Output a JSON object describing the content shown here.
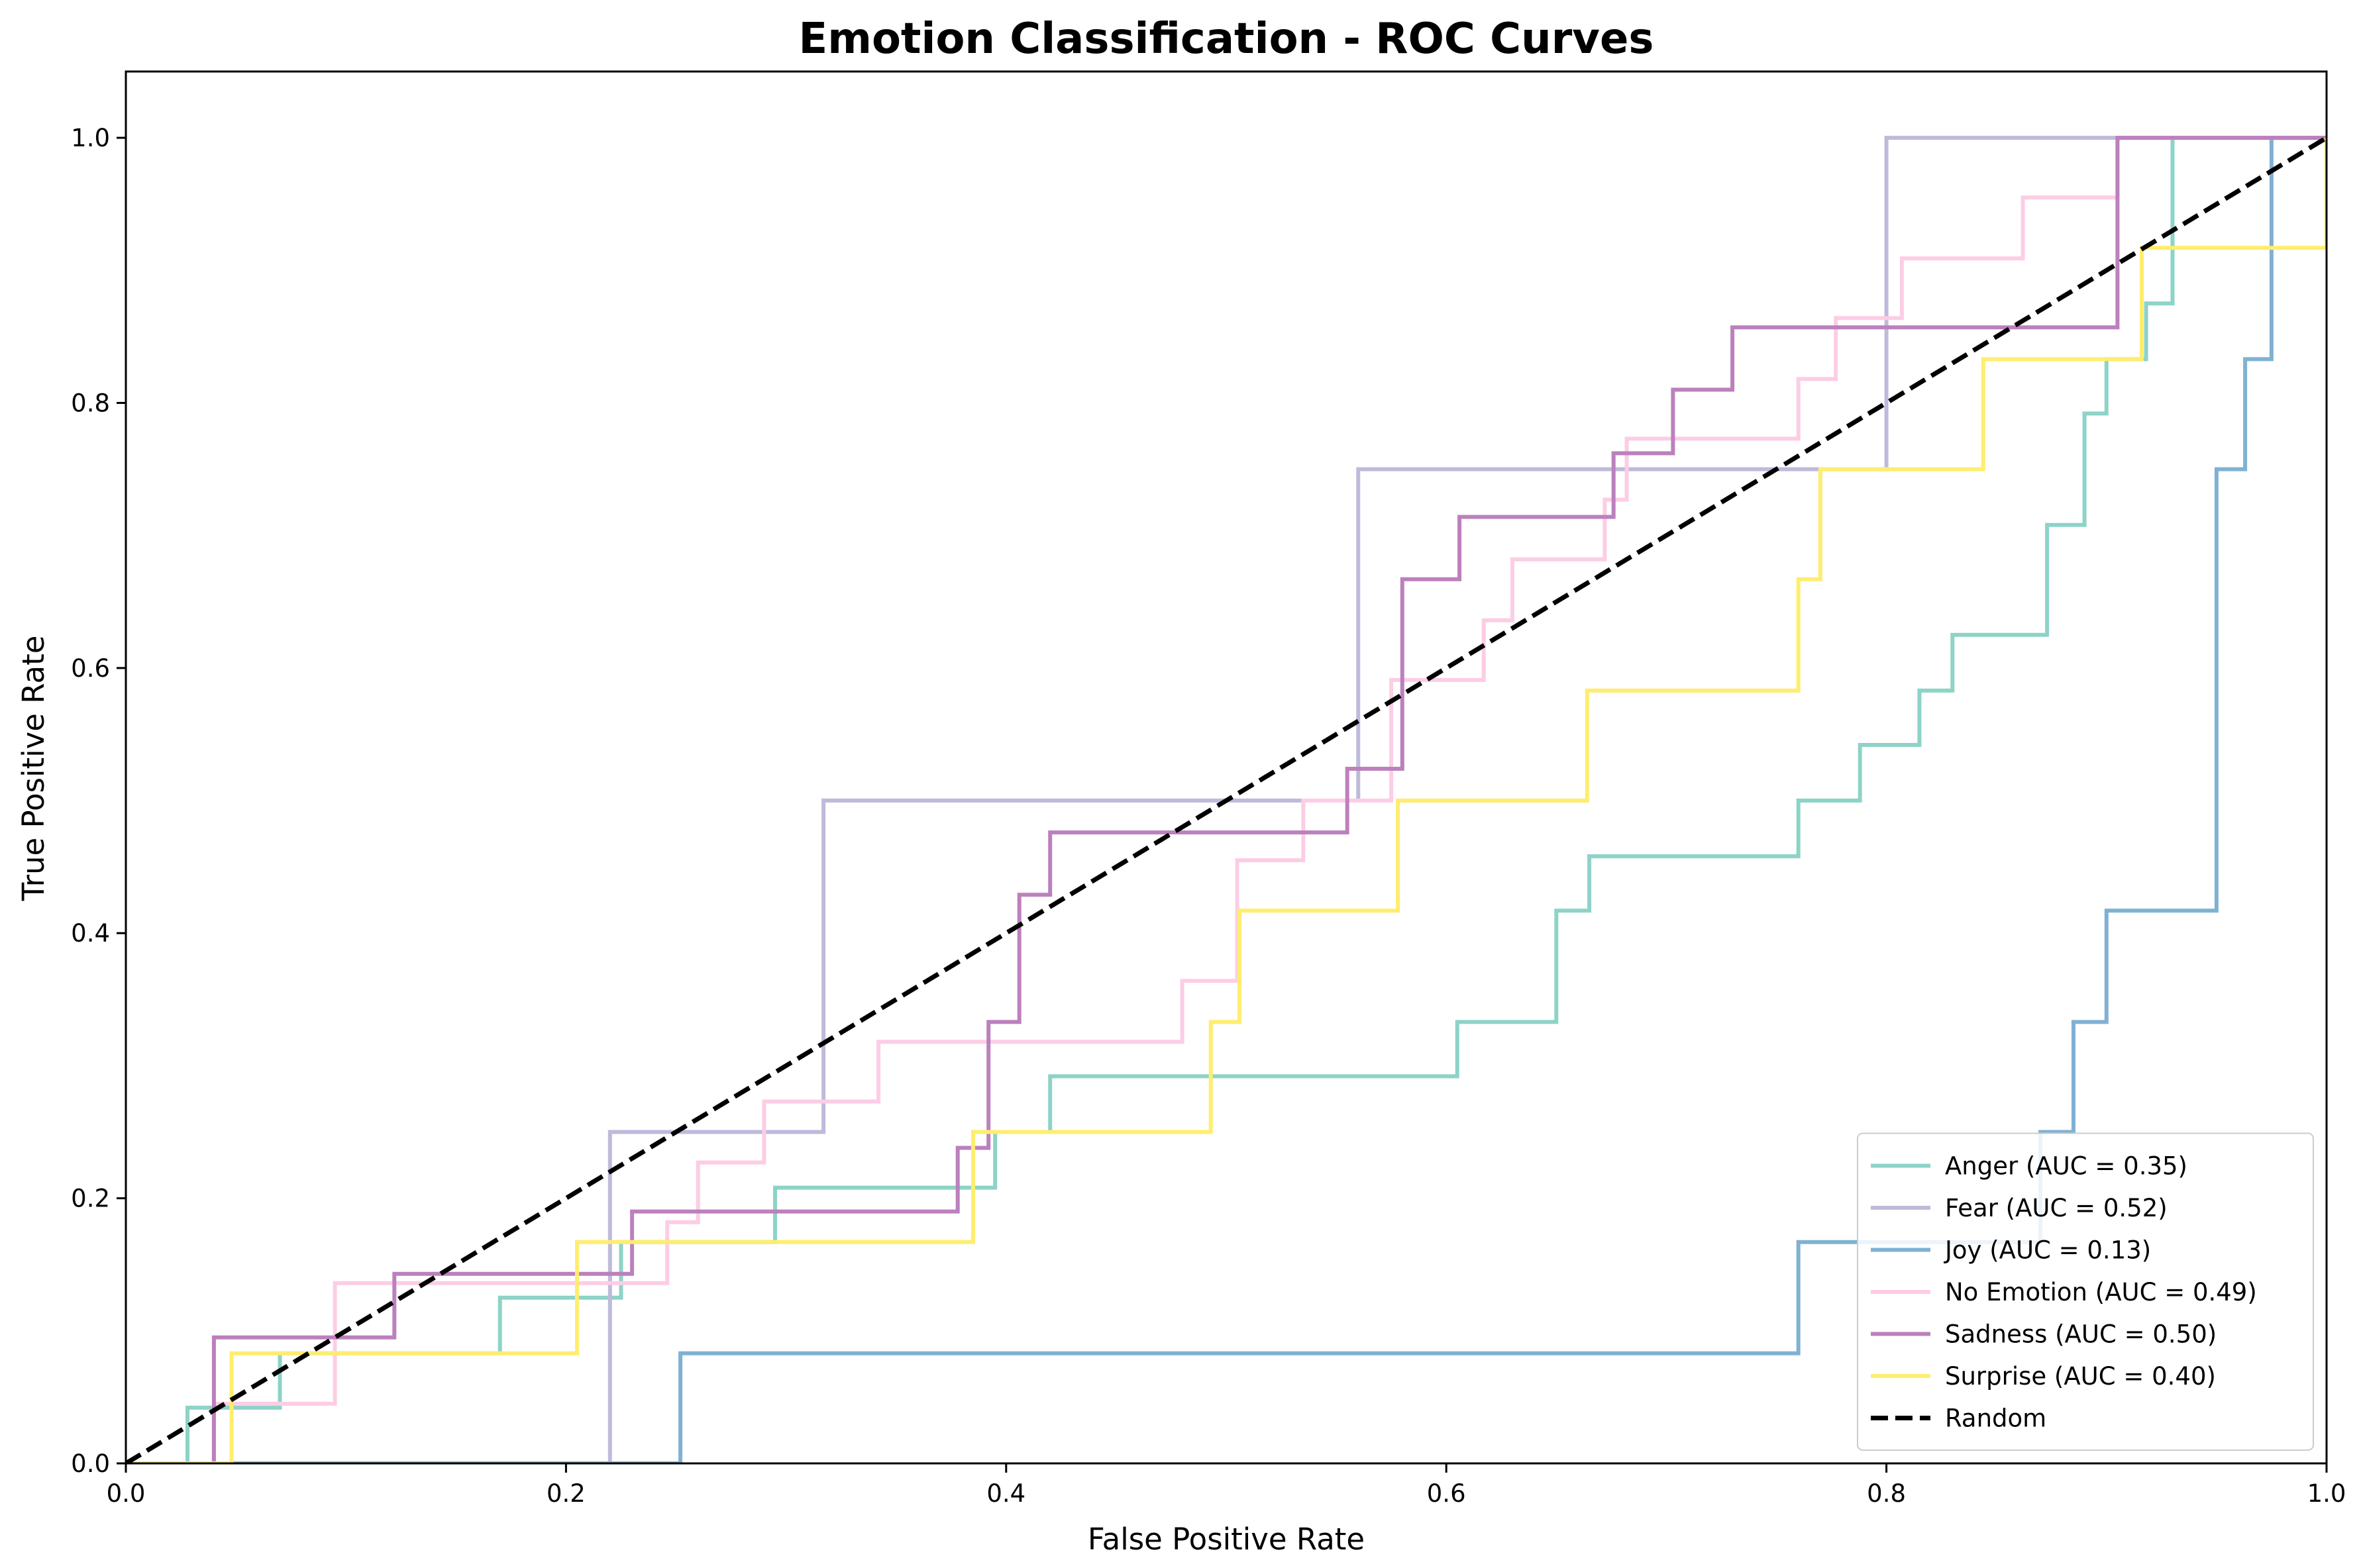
{
  "chart_data": {
    "type": "line",
    "title": "Emotion Classification - ROC Curves",
    "xlabel": "False Positive Rate",
    "ylabel": "True Positive Rate",
    "xlim": [
      0,
      1
    ],
    "ylim": [
      0,
      1.05
    ],
    "x_ticks": [
      "0.0",
      "0.2",
      "0.4",
      "0.6",
      "0.8",
      "1.0"
    ],
    "y_ticks": [
      "0.0",
      "0.2",
      "0.4",
      "0.6",
      "0.8",
      "1.0"
    ],
    "grid": false,
    "legend_position": "lower-right",
    "series": [
      {
        "name": "Anger (AUC = 0.35)",
        "color": "#8dd3c7",
        "points": [
          [
            0,
            0
          ],
          [
            0.028,
            0
          ],
          [
            0.028,
            0.042
          ],
          [
            0.07,
            0.042
          ],
          [
            0.07,
            0.083
          ],
          [
            0.17,
            0.083
          ],
          [
            0.17,
            0.125
          ],
          [
            0.225,
            0.125
          ],
          [
            0.225,
            0.167
          ],
          [
            0.295,
            0.167
          ],
          [
            0.295,
            0.208
          ],
          [
            0.395,
            0.208
          ],
          [
            0.395,
            0.25
          ],
          [
            0.42,
            0.25
          ],
          [
            0.42,
            0.292
          ],
          [
            0.605,
            0.292
          ],
          [
            0.605,
            0.333
          ],
          [
            0.65,
            0.333
          ],
          [
            0.65,
            0.417
          ],
          [
            0.665,
            0.417
          ],
          [
            0.665,
            0.458
          ],
          [
            0.76,
            0.458
          ],
          [
            0.76,
            0.5
          ],
          [
            0.788,
            0.5
          ],
          [
            0.788,
            0.542
          ],
          [
            0.815,
            0.542
          ],
          [
            0.815,
            0.583
          ],
          [
            0.83,
            0.583
          ],
          [
            0.83,
            0.625
          ],
          [
            0.873,
            0.625
          ],
          [
            0.873,
            0.708
          ],
          [
            0.89,
            0.708
          ],
          [
            0.89,
            0.792
          ],
          [
            0.9,
            0.792
          ],
          [
            0.9,
            0.833
          ],
          [
            0.918,
            0.833
          ],
          [
            0.918,
            0.875
          ],
          [
            0.93,
            0.875
          ],
          [
            0.93,
            1.0
          ],
          [
            1.0,
            1.0
          ]
        ]
      },
      {
        "name": "Fear (AUC = 0.52)",
        "color": "#bebada",
        "points": [
          [
            0,
            0
          ],
          [
            0.22,
            0
          ],
          [
            0.22,
            0.25
          ],
          [
            0.317,
            0.25
          ],
          [
            0.317,
            0.5
          ],
          [
            0.56,
            0.5
          ],
          [
            0.56,
            0.75
          ],
          [
            0.8,
            0.75
          ],
          [
            0.8,
            1.0
          ],
          [
            1.0,
            1.0
          ]
        ]
      },
      {
        "name": "Joy (AUC = 0.13)",
        "color": "#80b1d3",
        "points": [
          [
            0,
            0
          ],
          [
            0.252,
            0
          ],
          [
            0.252,
            0.083
          ],
          [
            0.76,
            0.083
          ],
          [
            0.76,
            0.167
          ],
          [
            0.87,
            0.167
          ],
          [
            0.87,
            0.25
          ],
          [
            0.885,
            0.25
          ],
          [
            0.885,
            0.333
          ],
          [
            0.9,
            0.333
          ],
          [
            0.9,
            0.417
          ],
          [
            0.95,
            0.417
          ],
          [
            0.95,
            0.75
          ],
          [
            0.963,
            0.75
          ],
          [
            0.963,
            0.833
          ],
          [
            0.975,
            0.833
          ],
          [
            0.975,
            1.0
          ],
          [
            1.0,
            1.0
          ]
        ]
      },
      {
        "name": "No Emotion (AUC = 0.49)",
        "color": "#fccde5",
        "points": [
          [
            0,
            0
          ],
          [
            0.04,
            0
          ],
          [
            0.04,
            0.045
          ],
          [
            0.095,
            0.045
          ],
          [
            0.095,
            0.136
          ],
          [
            0.246,
            0.136
          ],
          [
            0.246,
            0.182
          ],
          [
            0.26,
            0.182
          ],
          [
            0.26,
            0.227
          ],
          [
            0.29,
            0.227
          ],
          [
            0.29,
            0.273
          ],
          [
            0.342,
            0.273
          ],
          [
            0.342,
            0.318
          ],
          [
            0.48,
            0.318
          ],
          [
            0.48,
            0.364
          ],
          [
            0.505,
            0.364
          ],
          [
            0.505,
            0.455
          ],
          [
            0.535,
            0.455
          ],
          [
            0.535,
            0.5
          ],
          [
            0.575,
            0.5
          ],
          [
            0.575,
            0.591
          ],
          [
            0.617,
            0.591
          ],
          [
            0.617,
            0.636
          ],
          [
            0.63,
            0.636
          ],
          [
            0.63,
            0.682
          ],
          [
            0.672,
            0.682
          ],
          [
            0.672,
            0.727
          ],
          [
            0.682,
            0.727
          ],
          [
            0.682,
            0.773
          ],
          [
            0.76,
            0.773
          ],
          [
            0.76,
            0.818
          ],
          [
            0.777,
            0.818
          ],
          [
            0.777,
            0.864
          ],
          [
            0.807,
            0.864
          ],
          [
            0.807,
            0.909
          ],
          [
            0.862,
            0.909
          ],
          [
            0.862,
            0.955
          ],
          [
            0.905,
            0.955
          ],
          [
            0.905,
            1.0
          ],
          [
            1.0,
            1.0
          ]
        ]
      },
      {
        "name": "Sadness (AUC = 0.50)",
        "color": "#bc80bd",
        "points": [
          [
            0,
            0
          ],
          [
            0.04,
            0
          ],
          [
            0.04,
            0.095
          ],
          [
            0.122,
            0.095
          ],
          [
            0.122,
            0.143
          ],
          [
            0.23,
            0.143
          ],
          [
            0.23,
            0.19
          ],
          [
            0.378,
            0.19
          ],
          [
            0.378,
            0.238
          ],
          [
            0.392,
            0.238
          ],
          [
            0.392,
            0.333
          ],
          [
            0.406,
            0.333
          ],
          [
            0.406,
            0.429
          ],
          [
            0.42,
            0.429
          ],
          [
            0.42,
            0.476
          ],
          [
            0.555,
            0.476
          ],
          [
            0.555,
            0.524
          ],
          [
            0.58,
            0.524
          ],
          [
            0.58,
            0.667
          ],
          [
            0.606,
            0.667
          ],
          [
            0.606,
            0.714
          ],
          [
            0.676,
            0.714
          ],
          [
            0.676,
            0.762
          ],
          [
            0.703,
            0.762
          ],
          [
            0.703,
            0.81
          ],
          [
            0.73,
            0.81
          ],
          [
            0.73,
            0.857
          ],
          [
            0.905,
            0.857
          ],
          [
            0.905,
            1.0
          ],
          [
            1.0,
            1.0
          ]
        ]
      },
      {
        "name": "Surprise (AUC = 0.40)",
        "color": "#ffed6f",
        "points": [
          [
            0,
            0
          ],
          [
            0.048,
            0
          ],
          [
            0.048,
            0.083
          ],
          [
            0.205,
            0.083
          ],
          [
            0.205,
            0.167
          ],
          [
            0.385,
            0.167
          ],
          [
            0.385,
            0.25
          ],
          [
            0.493,
            0.25
          ],
          [
            0.493,
            0.333
          ],
          [
            0.506,
            0.333
          ],
          [
            0.506,
            0.417
          ],
          [
            0.578,
            0.417
          ],
          [
            0.578,
            0.5
          ],
          [
            0.664,
            0.5
          ],
          [
            0.664,
            0.583
          ],
          [
            0.76,
            0.583
          ],
          [
            0.76,
            0.667
          ],
          [
            0.77,
            0.667
          ],
          [
            0.77,
            0.75
          ],
          [
            0.844,
            0.75
          ],
          [
            0.844,
            0.833
          ],
          [
            0.916,
            0.833
          ],
          [
            0.916,
            0.917
          ],
          [
            1.0,
            0.917
          ],
          [
            1.0,
            1.0
          ]
        ]
      },
      {
        "name": "Random",
        "color": "#000000",
        "dashed": true,
        "points": [
          [
            0,
            0
          ],
          [
            1,
            1
          ]
        ]
      }
    ]
  }
}
